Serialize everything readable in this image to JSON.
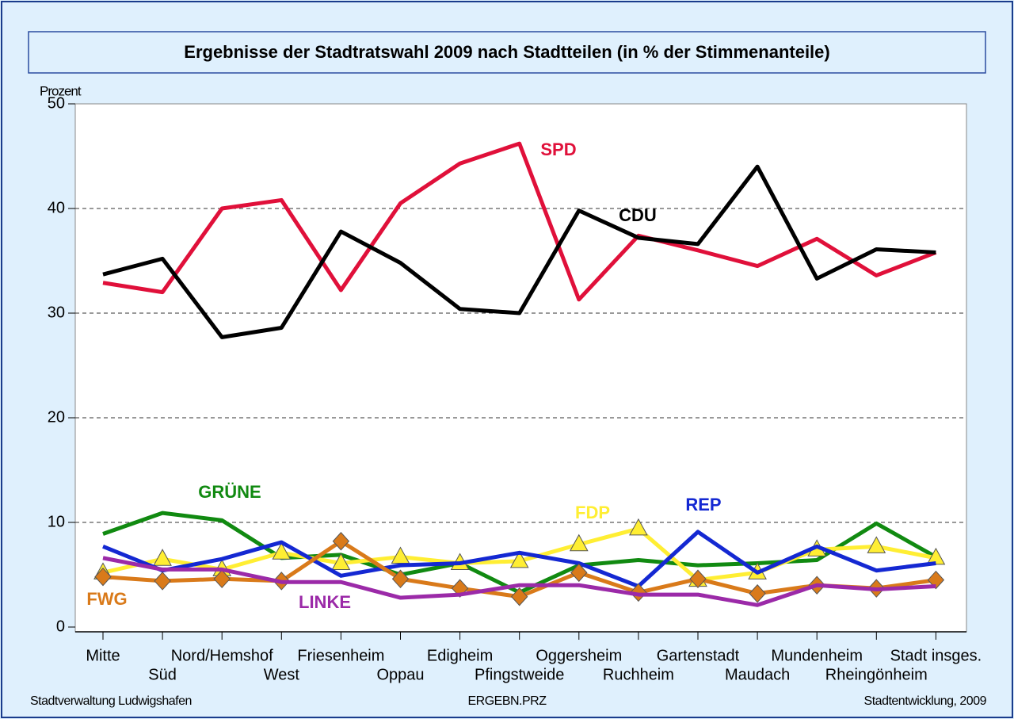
{
  "chart_data": {
    "type": "line",
    "title": "Ergebnisse der Stadtratswahl 2009 nach Stadtteilen (in % der Stimmenanteile)",
    "y_label": "Prozent",
    "footer_left": "Stadtverwaltung Ludwigshafen",
    "footer_center": "ERGEBN.PRZ",
    "footer_right": "Stadtentwicklung, 2009",
    "categories": [
      "Mitte",
      "Süd",
      "Nord/Hemshof",
      "West",
      "Friesenheim",
      "Oppau",
      "Edigheim",
      "Pfingstweide",
      "Oggersheim",
      "Ruchheim",
      "Gartenstadt",
      "Maudach",
      "Mundenheim",
      "Rheingönheim",
      "Stadt insges."
    ],
    "ylim": [
      0,
      50
    ],
    "yticks": [
      0,
      10,
      20,
      30,
      40,
      50
    ],
    "grid": true,
    "series": [
      {
        "name": "SPD",
        "color": "#e0103a",
        "values": [
          32.9,
          32.0,
          40.0,
          40.8,
          32.2,
          40.5,
          44.3,
          46.2,
          31.3,
          37.4,
          36.0,
          34.5,
          37.1,
          33.6,
          35.8
        ]
      },
      {
        "name": "CDU",
        "color": "#000000",
        "values": [
          33.7,
          35.2,
          27.7,
          28.6,
          37.8,
          34.8,
          30.4,
          30.0,
          39.8,
          37.2,
          36.6,
          44.0,
          33.3,
          36.1,
          35.8
        ]
      },
      {
        "name": "GRÜNE",
        "color": "#118a11",
        "values": [
          8.9,
          10.9,
          10.2,
          6.6,
          6.9,
          5.0,
          6.1,
          3.3,
          5.9,
          6.4,
          5.9,
          6.1,
          6.4,
          9.9,
          6.7
        ]
      },
      {
        "name": "FDP",
        "color": "#ffee33",
        "marker": "triangle",
        "values": [
          5.2,
          6.5,
          5.5,
          7.1,
          6.1,
          6.7,
          6.1,
          6.3,
          7.9,
          9.4,
          4.5,
          5.2,
          7.4,
          7.7,
          6.6
        ]
      },
      {
        "name": "REP",
        "color": "#1428d2",
        "values": [
          7.7,
          5.4,
          6.5,
          8.1,
          4.9,
          5.9,
          6.1,
          7.1,
          6.1,
          3.9,
          9.1,
          5.2,
          7.7,
          5.4,
          6.1
        ]
      },
      {
        "name": "FWG",
        "color": "#d97a1a",
        "marker": "diamond",
        "values": [
          4.8,
          4.4,
          4.6,
          4.4,
          8.2,
          4.6,
          3.7,
          2.9,
          5.2,
          3.3,
          4.6,
          3.2,
          4.0,
          3.7,
          4.5
        ]
      },
      {
        "name": "LINKE",
        "color": "#9b2aa8",
        "values": [
          6.6,
          5.5,
          5.5,
          4.3,
          4.3,
          2.8,
          3.1,
          4.0,
          4.0,
          3.1,
          3.1,
          2.1,
          4.0,
          3.6,
          3.9
        ]
      }
    ]
  }
}
